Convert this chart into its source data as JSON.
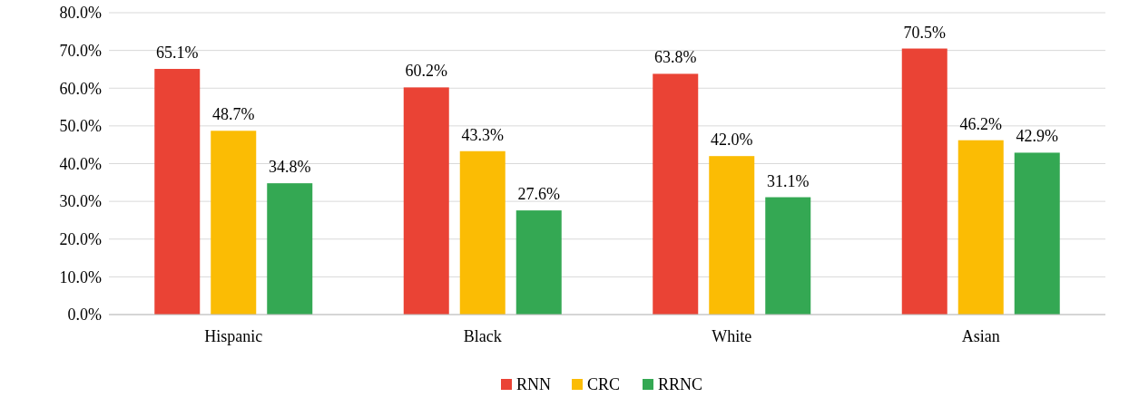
{
  "chart_data": {
    "type": "bar",
    "categories": [
      "Hispanic",
      "Black",
      "White",
      "Asian"
    ],
    "series": [
      {
        "name": "RNN",
        "color": "#ea4335",
        "values": [
          65.1,
          60.2,
          63.8,
          70.5
        ],
        "value_labels": [
          "65.1%",
          "60.2%",
          "63.8%",
          "70.5%"
        ]
      },
      {
        "name": "CRC",
        "color": "#fbbc04",
        "values": [
          48.7,
          43.3,
          42.0,
          46.2
        ],
        "value_labels": [
          "48.7%",
          "43.3%",
          "42.0%",
          "46.2%"
        ]
      },
      {
        "name": "RRNC",
        "color": "#34a853",
        "values": [
          34.8,
          27.6,
          31.1,
          42.9
        ],
        "value_labels": [
          "34.8%",
          "27.6%",
          "31.1%",
          "42.9%"
        ]
      }
    ],
    "ylim": [
      0,
      80
    ],
    "yticks": [
      {
        "value": 0,
        "label": "0.0%"
      },
      {
        "value": 10,
        "label": "10.0%"
      },
      {
        "value": 20,
        "label": "20.0%"
      },
      {
        "value": 30,
        "label": "30.0%"
      },
      {
        "value": 40,
        "label": "40.0%"
      },
      {
        "value": 50,
        "label": "50.0%"
      },
      {
        "value": 60,
        "label": "60.0%"
      },
      {
        "value": 70,
        "label": "70.0%"
      },
      {
        "value": 80,
        "label": "80.0%"
      }
    ],
    "grid": "y",
    "legend": "bottom"
  }
}
